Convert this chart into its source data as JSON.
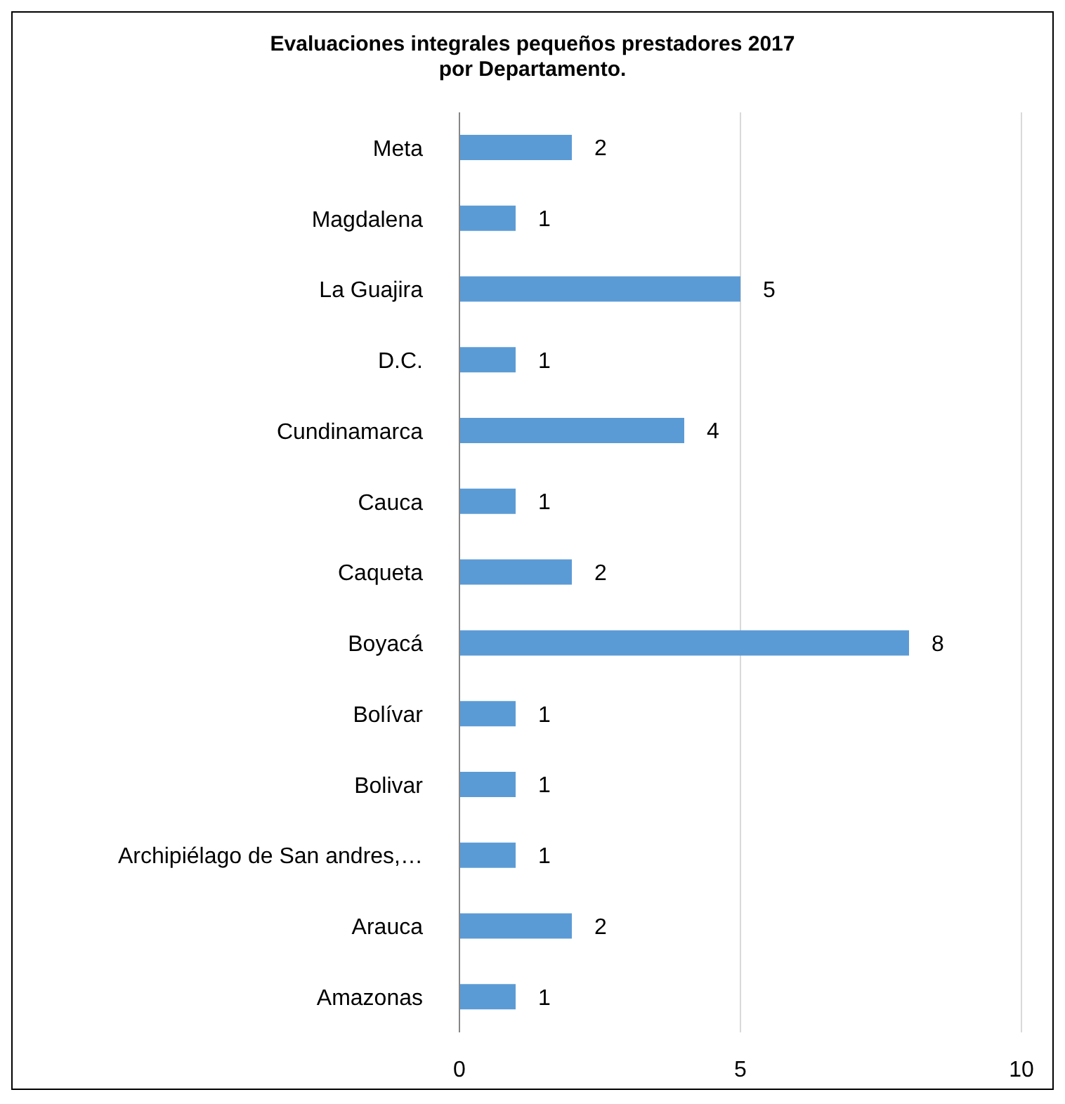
{
  "chart_data": {
    "type": "bar",
    "orientation": "horizontal",
    "title": "Evaluaciones integrales pequeños prestadores 2017\npor Departamento.",
    "categories": [
      "Meta",
      "Magdalena",
      "La Guajira",
      "D.C.",
      "Cundinamarca",
      "Cauca",
      "Caqueta",
      "Boyacá",
      "Bolívar",
      "Bolivar",
      "Archipiélago de San andres,…",
      "Arauca",
      "Amazonas"
    ],
    "values": [
      2,
      1,
      5,
      1,
      4,
      1,
      2,
      8,
      1,
      1,
      1,
      2,
      1
    ],
    "color": "#5b9bd5",
    "xlim": [
      0,
      10
    ],
    "xticks": [
      0,
      5,
      10
    ],
    "grid": "x",
    "data_labels": true,
    "legend": false
  }
}
